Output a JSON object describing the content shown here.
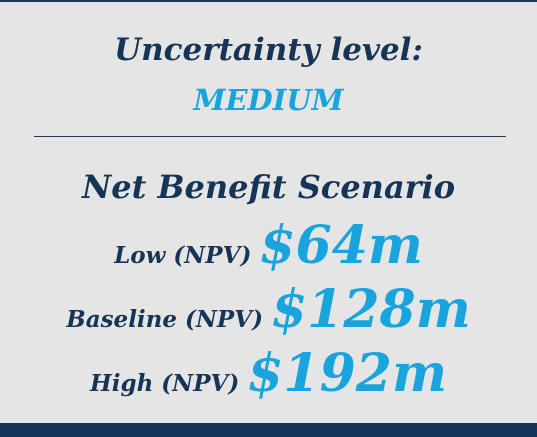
{
  "header": {
    "title": "Uncertainty level:",
    "level": "MEDIUM"
  },
  "scenario": {
    "title": "Net Benefit Scenario",
    "rows": [
      {
        "label": "Low (NPV)",
        "value": "$64m"
      },
      {
        "label": "Baseline (NPV)",
        "value": "$128m"
      },
      {
        "label": "High (NPV)",
        "value": "$192m"
      }
    ]
  }
}
